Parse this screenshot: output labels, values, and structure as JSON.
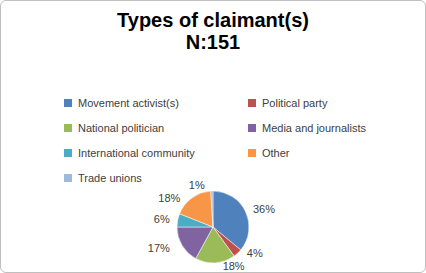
{
  "chart_data": {
    "type": "pie",
    "title": "Types of claimant(s)",
    "subtitle": "N:151",
    "categories": [
      "Movement activist(s)",
      "Political party",
      "National politician",
      "Media and journalists",
      "International community",
      "Other",
      "Trade unions"
    ],
    "values": [
      36,
      4,
      18,
      17,
      6,
      18,
      1
    ],
    "value_labels": [
      "36%",
      "4%",
      "18%",
      "17%",
      "6%",
      "18%",
      "1%"
    ],
    "colors": [
      "#4f81bd",
      "#c0504d",
      "#9bbb59",
      "#8064a2",
      "#4bacc6",
      "#f79646",
      "#9db9df"
    ],
    "data_labels": true,
    "legend": "top"
  }
}
